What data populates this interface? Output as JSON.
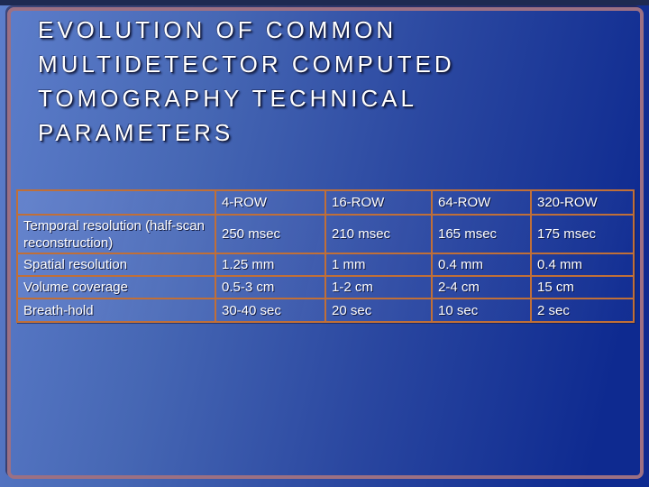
{
  "slide": {
    "title_lines": [
      "EVOLUTION OF COMMON",
      "MULTIDETECTOR COMPUTED",
      "TOMOGRAPHY TECHNICAL",
      "PARAMETERS"
    ]
  },
  "colors": {
    "background_gradient_start": "#5d7ecb",
    "background_gradient_end": "#0e2a90",
    "frame_border": "#9c7083",
    "table_border": "#c06f38",
    "text": "#ffffff"
  },
  "table": {
    "header": [
      "",
      "4-ROW",
      "16-ROW",
      "64-ROW",
      "320-ROW"
    ],
    "rows": [
      {
        "label": "Temporal resolution (half-scan reconstruction)",
        "values": [
          "250 msec",
          "210 msec",
          "165 msec",
          "175 msec"
        ]
      },
      {
        "label": "Spatial resolution",
        "values": [
          "1.25 mm",
          "1 mm",
          "0.4 mm",
          "0.4 mm"
        ]
      },
      {
        "label": "Volume coverage",
        "values": [
          "0.5-3 cm",
          "1-2 cm",
          "2-4 cm",
          "15 cm"
        ]
      },
      {
        "label": "Breath-hold",
        "values": [
          "30-40 sec",
          "20 sec",
          "10 sec",
          "2 sec"
        ]
      }
    ]
  }
}
